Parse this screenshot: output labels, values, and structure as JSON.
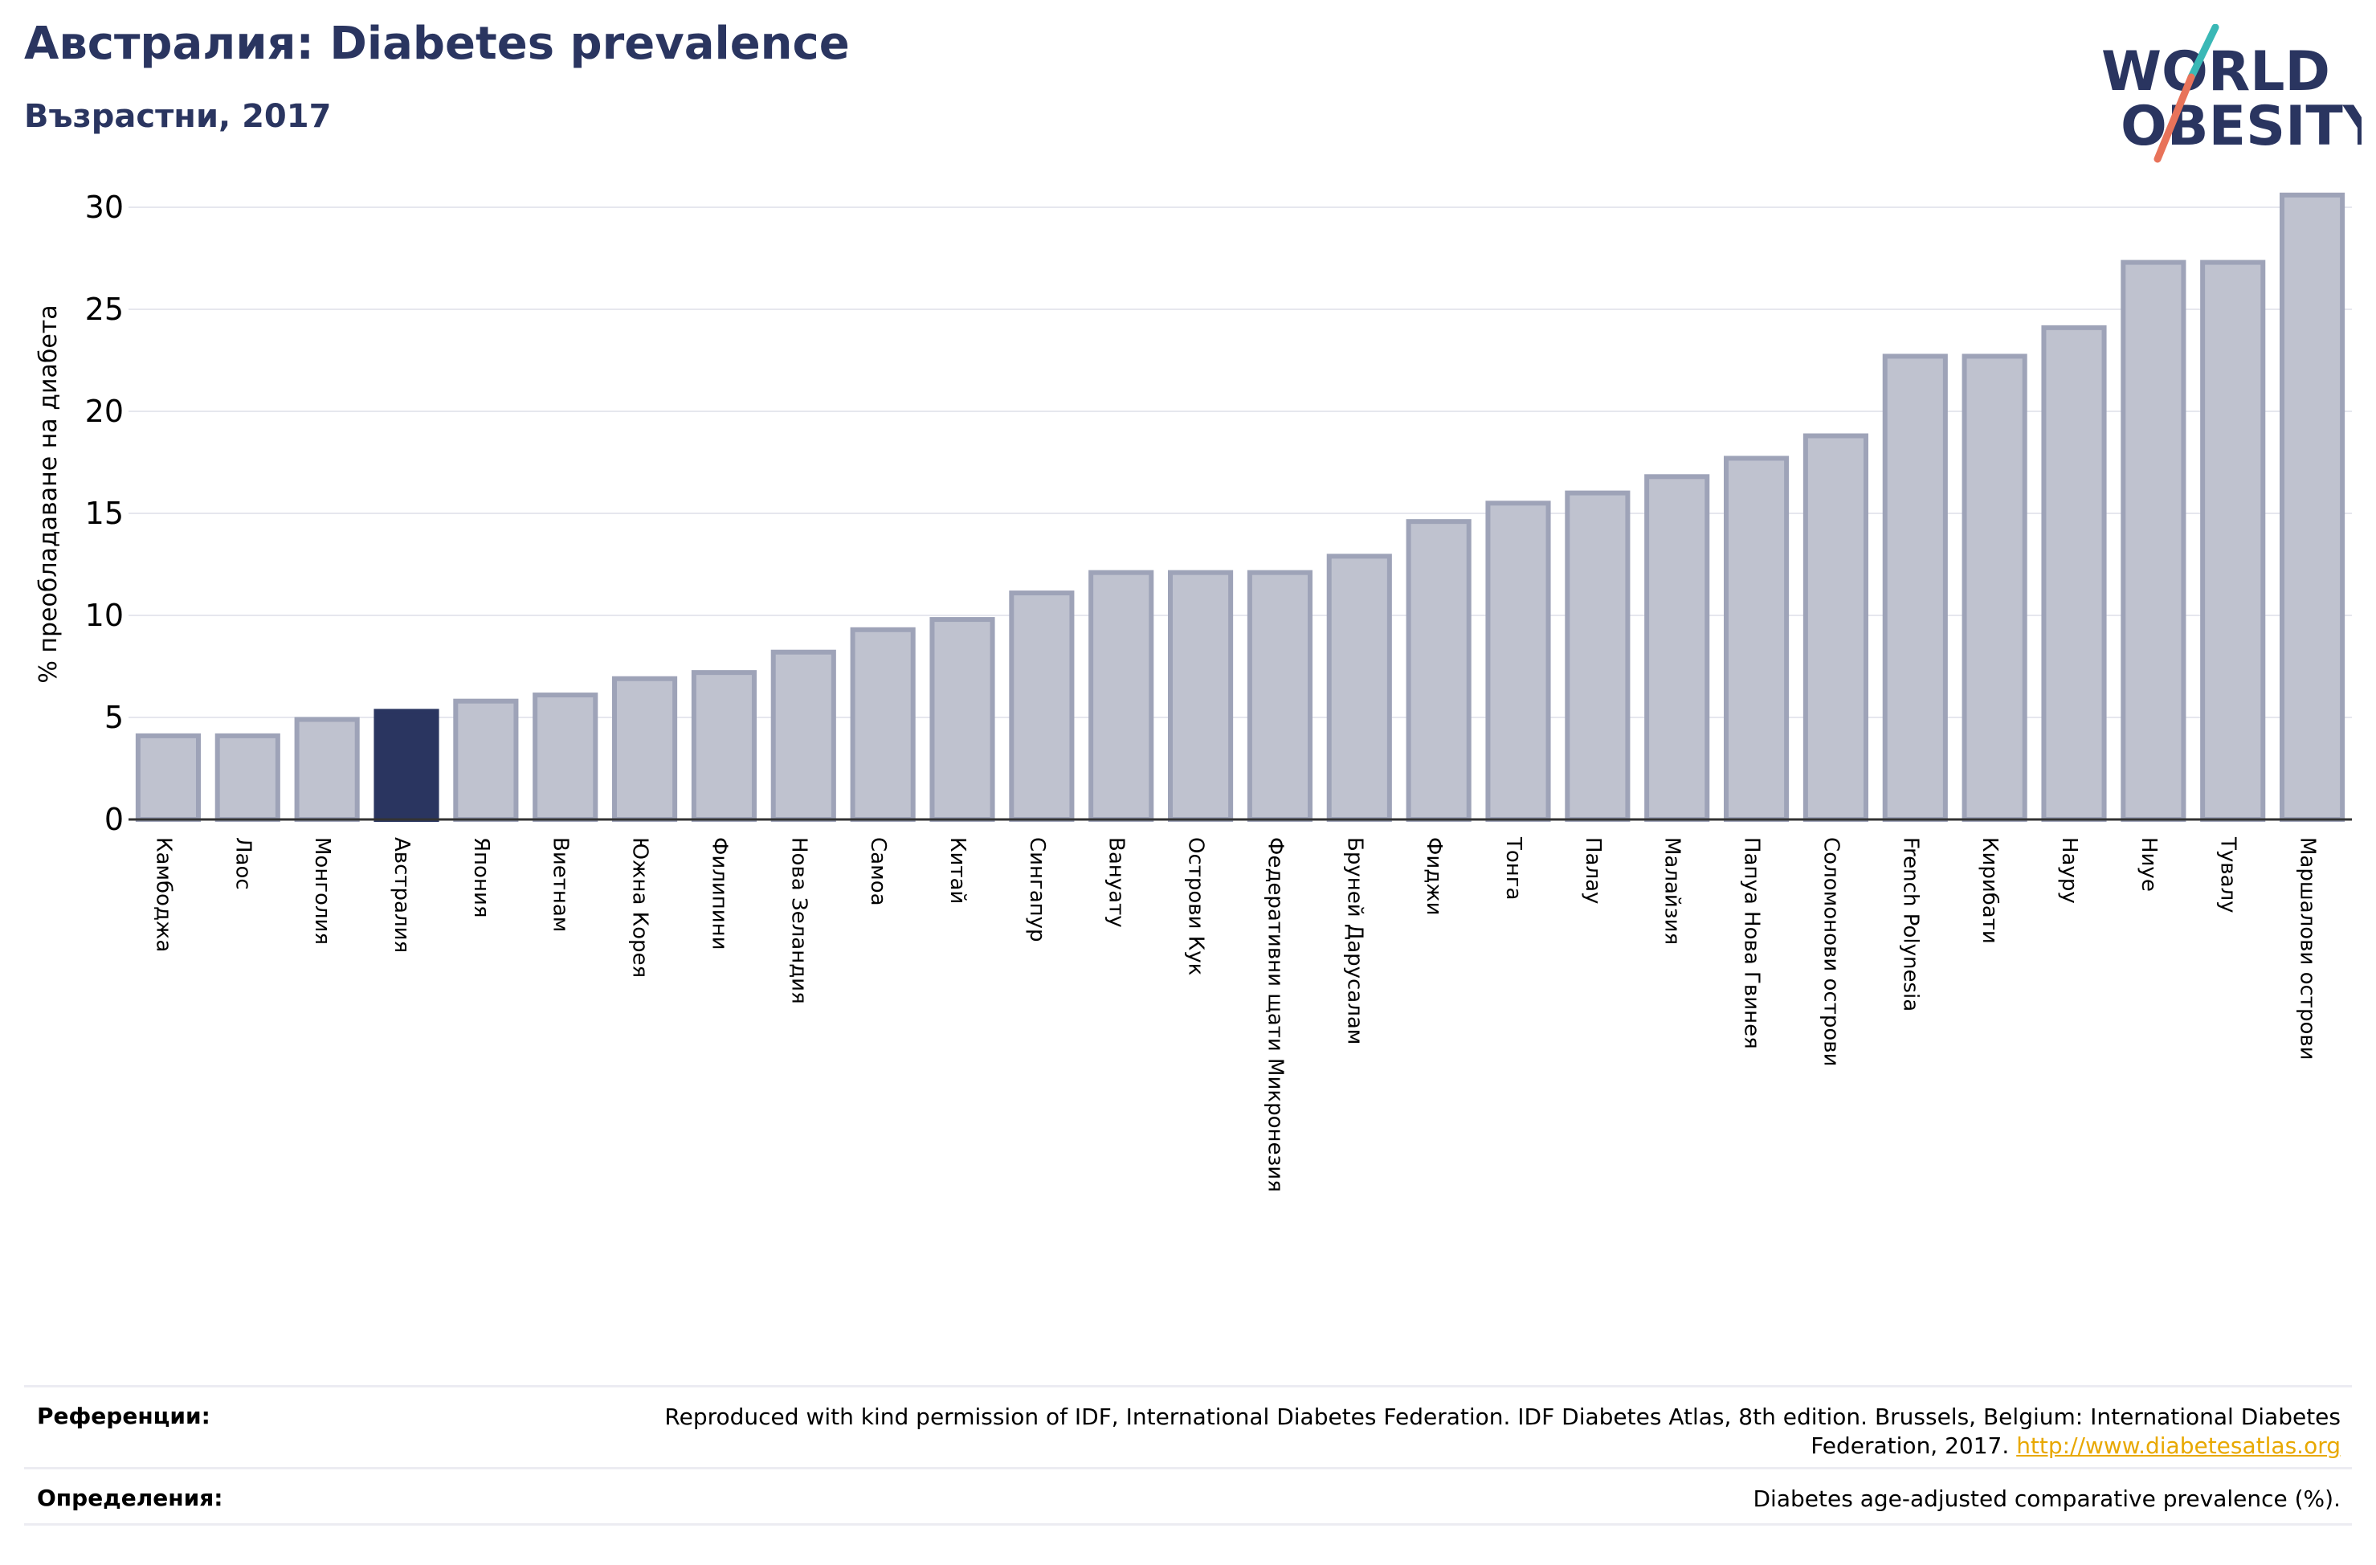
{
  "header": {
    "title": "Австралия: Diabetes prevalence",
    "subtitle": "Възрастни, 2017"
  },
  "logo": {
    "line1": "WORLD",
    "line2": "OBESITY",
    "brand_color": "#2a3560",
    "accent_teal": "#3ab8b6",
    "accent_red": "#e8735a"
  },
  "colors": {
    "bar_fill": "#bfc2cf",
    "bar_stroke": "#9ea3b8",
    "highlight": "#2a3560"
  },
  "chart_data": {
    "type": "bar",
    "title": "Австралия: Diabetes prevalence",
    "subtitle": "Възрастни, 2017",
    "ylabel": "% преобладаване на диабета",
    "xlabel": "",
    "ylim": [
      0,
      31
    ],
    "yticks": [
      0,
      5,
      10,
      15,
      20,
      25,
      30
    ],
    "grid": true,
    "highlight_category": "Австралия",
    "categories": [
      "Камбоджа",
      "Лаос",
      "Монголия",
      "Австралия",
      "Япония",
      "Виетнам",
      "Южна Корея",
      "Филипини",
      "Нова Зеландия",
      "Самоа",
      "Китай",
      "Сингапур",
      "Вануату",
      "Острови Кук",
      "Федеративни щати Микронезия",
      "Бруней Дарусалам",
      "Фиджи",
      "Тонга",
      "Палау",
      "Малайзия",
      "Папуа Нова Гвинея",
      "Соломонови острови",
      "French Polynesia",
      "Кирибати",
      "Науру",
      "Ниуе",
      "Тувалу",
      "Маршалови острови"
    ],
    "values": [
      4.1,
      4.1,
      4.9,
      5.3,
      5.8,
      6.1,
      6.9,
      7.2,
      8.2,
      9.3,
      9.8,
      11.1,
      12.1,
      12.1,
      12.1,
      12.9,
      14.6,
      15.5,
      16.0,
      16.8,
      17.7,
      18.8,
      22.7,
      22.7,
      24.1,
      27.3,
      27.3,
      30.6
    ]
  },
  "footer": {
    "references_label": "Референции:",
    "references_text": "Reproduced with kind permission of IDF, International Diabetes Federation. IDF Diabetes Atlas, 8th edition. Brussels, Belgium: International Diabetes Federation, 2017.",
    "references_link": "http://www.diabetesatlas.org",
    "definitions_label": "Определения:",
    "definitions_text": "Diabetes age-adjusted comparative prevalence (%)."
  }
}
